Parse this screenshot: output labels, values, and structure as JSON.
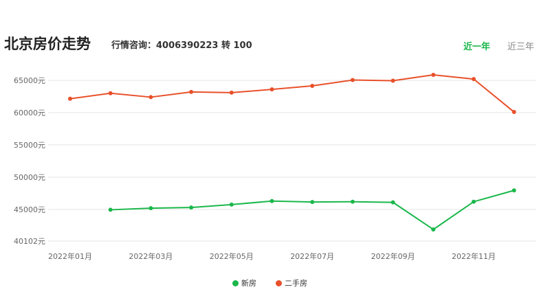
{
  "header": {
    "title": "北京房价走势",
    "hotline": "行情咨询：4006390223 转 100",
    "tabs": [
      {
        "label": "近一年",
        "active": true
      },
      {
        "label": "近三年",
        "active": false
      }
    ]
  },
  "colors": {
    "new": "#1ab74a",
    "second_hand": "#e8502a",
    "active_tab": "#1ab74a",
    "grid": "#e6e6e6",
    "axis_text": "#666666"
  },
  "chart_data": {
    "type": "line",
    "x": [
      "2022-01",
      "2022-02",
      "2022-03",
      "2022-04",
      "2022-05",
      "2022-06",
      "2022-07",
      "2022-08",
      "2022-09",
      "2022-10",
      "2022-11",
      "2022-12"
    ],
    "x_tick_labels": [
      "2022年01月",
      "2022年03月",
      "2022年05月",
      "2022年07月",
      "2022年09月",
      "2022年11月"
    ],
    "y_ticks": [
      40102,
      45000,
      50000,
      55000,
      60000,
      65000
    ],
    "y_tick_labels": [
      "40102元",
      "45000元",
      "50000元",
      "55000元",
      "60000元",
      "65000元"
    ],
    "ylim": [
      40102,
      66000
    ],
    "grid": true,
    "legend_position": "bottom-center",
    "series": [
      {
        "name": "新房",
        "color": "#1ab74a",
        "values": [
          null,
          44950,
          45200,
          45300,
          45750,
          46300,
          46150,
          46200,
          46100,
          41900,
          46200,
          47950
        ]
      },
      {
        "name": "二手房",
        "color": "#e8502a",
        "values": [
          62150,
          63000,
          62400,
          63200,
          63100,
          63600,
          64150,
          65050,
          64950,
          65850,
          65200,
          60100
        ]
      }
    ]
  }
}
